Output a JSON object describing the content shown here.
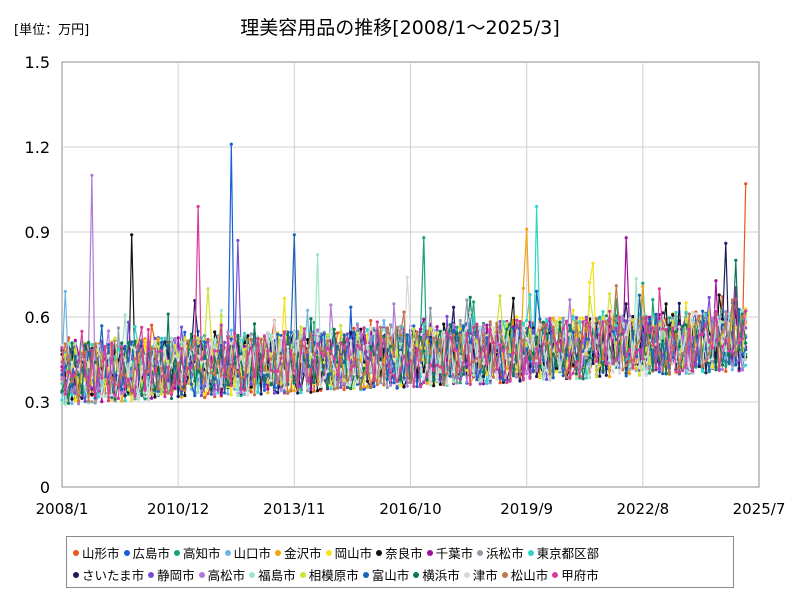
{
  "chart_data": {
    "type": "line",
    "title": "理美容用品の推移[2008/1～2025/3]",
    "unit_label": "[単位：万円]",
    "xlabel": "",
    "ylabel": "",
    "x_range": [
      "2008/1",
      "2025/7"
    ],
    "x_tick_labels": [
      "2008/1",
      "2010/12",
      "2013/11",
      "2016/10",
      "2019/9",
      "2022/8",
      "2025/7"
    ],
    "y_tick_labels": [
      "0",
      "0.3",
      "0.6",
      "0.9",
      "1.2",
      "1.5"
    ],
    "ylim": [
      0,
      1.5
    ],
    "grid": true,
    "legend_position": "bottom",
    "series": [
      {
        "name": "山形市",
        "color": "#e8571e",
        "peak": {
          "x": "2025/3",
          "y": 1.07
        }
      },
      {
        "name": "広島市",
        "color": "#1a5fd6",
        "peak": {
          "x": "2012/4",
          "y": 1.21
        }
      },
      {
        "name": "高知市",
        "color": "#17a374",
        "peak": {
          "x": "2017/2",
          "y": 0.88
        }
      },
      {
        "name": "山口市",
        "color": "#6ab6e6",
        "peak": {
          "x": "2008/2",
          "y": 0.69
        }
      },
      {
        "name": "金沢市",
        "color": "#f2a413",
        "peak": {
          "x": "2019/9",
          "y": 0.91
        }
      },
      {
        "name": "岡山市",
        "color": "#f5e21a",
        "peak": {
          "x": "2021/5",
          "y": 0.79
        }
      },
      {
        "name": "奈良市",
        "color": "#111111",
        "peak": {
          "x": "2009/10",
          "y": 0.89
        }
      },
      {
        "name": "千葉市",
        "color": "#a0109a",
        "peak": {
          "x": "2022/3",
          "y": 0.88
        }
      },
      {
        "name": "浜松市",
        "color": "#8b9aaa",
        "peak": {
          "x": "2018/3",
          "y": 0.66
        }
      },
      {
        "name": "東京都区部",
        "color": "#2fd6c6",
        "peak": {
          "x": "2019/12",
          "y": 0.99
        }
      },
      {
        "name": "さいたま市",
        "color": "#1c1c5a",
        "peak": {
          "x": "2024/9",
          "y": 0.86
        }
      },
      {
        "name": "静岡市",
        "color": "#7a4dd6",
        "peak": {
          "x": "2012/6",
          "y": 0.87
        }
      },
      {
        "name": "高松市",
        "color": "#b07ad6",
        "peak": {
          "x": "2008/10",
          "y": 1.1
        }
      },
      {
        "name": "福島市",
        "color": "#9ee6c2",
        "peak": {
          "x": "2014/6",
          "y": 0.82
        }
      },
      {
        "name": "相模原市",
        "color": "#d2e03a",
        "peak": {
          "x": "2011/9",
          "y": 0.7
        }
      },
      {
        "name": "富山市",
        "color": "#1a63b8",
        "peak": {
          "x": "2013/11",
          "y": 0.89
        }
      },
      {
        "name": "横浜市",
        "color": "#0f7a52",
        "peak": {
          "x": "2024/12",
          "y": 0.8
        }
      },
      {
        "name": "津市",
        "color": "#d9d9d9",
        "peak": {
          "x": "2016/9",
          "y": 0.74
        }
      },
      {
        "name": "松山市",
        "color": "#c0774e",
        "peak": {
          "x": "2024/11",
          "y": 0.66
        }
      },
      {
        "name": "甲府市",
        "color": "#d63c9a",
        "peak": {
          "x": "2011/6",
          "y": 0.99
        }
      }
    ]
  }
}
